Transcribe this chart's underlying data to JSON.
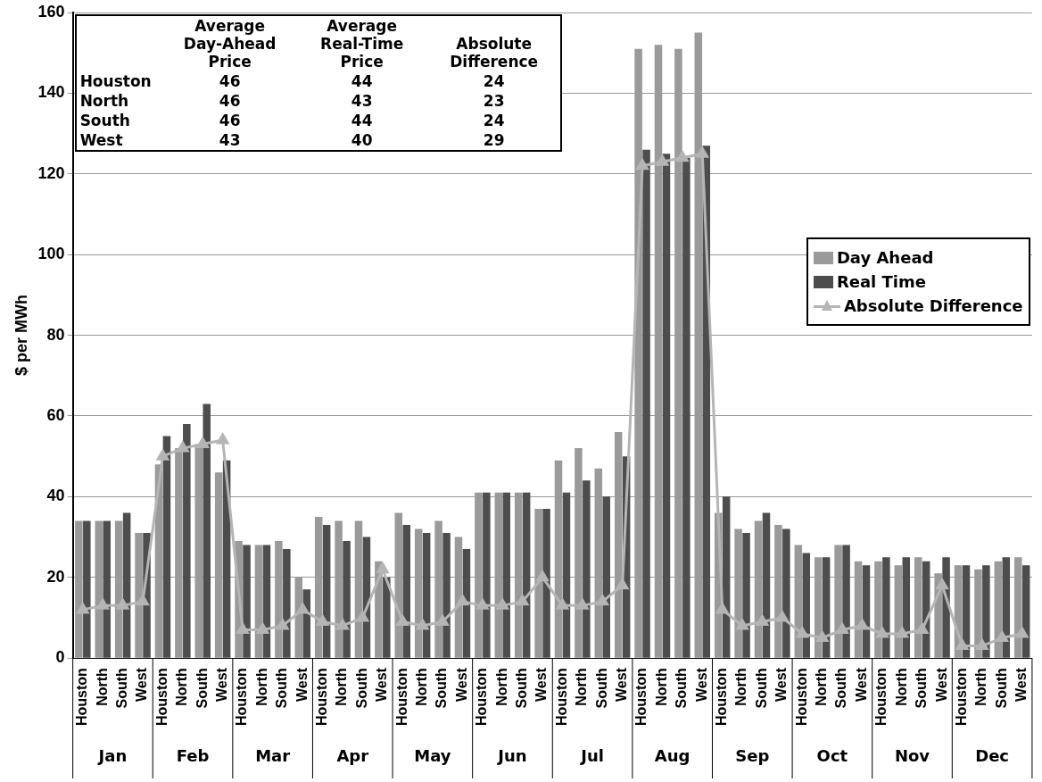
{
  "chart_data": {
    "type": "bar",
    "ylabel": "$ per MWh",
    "categories": [
      "Houston",
      "North",
      "South",
      "West",
      "Houston",
      "North",
      "South",
      "West",
      "Houston",
      "North",
      "South",
      "West",
      "Houston",
      "North",
      "South",
      "West",
      "Houston",
      "North",
      "South",
      "West",
      "Houston",
      "North",
      "South",
      "West",
      "Houston",
      "North",
      "South",
      "West",
      "Houston",
      "North",
      "South",
      "West",
      "Houston",
      "North",
      "South",
      "West",
      "Houston",
      "North",
      "South",
      "West",
      "Houston",
      "North",
      "South",
      "West",
      "Houston",
      "North",
      "South",
      "West"
    ],
    "series": [
      {
        "name": "Day Ahead",
        "color": "#9a9a9a",
        "values": [
          34,
          34,
          34,
          31,
          48,
          52,
          53,
          46,
          29,
          28,
          29,
          20,
          35,
          34,
          34,
          24,
          36,
          32,
          34,
          30,
          41,
          41,
          41,
          37,
          49,
          52,
          47,
          56,
          151,
          152,
          151,
          155,
          36,
          32,
          34,
          33,
          28,
          25,
          28,
          24,
          24,
          23,
          25,
          21,
          23,
          22,
          24,
          25
        ]
      },
      {
        "name": "Real Time",
        "color": "#4d4d4d",
        "values": [
          34,
          34,
          36,
          31,
          55,
          58,
          63,
          49,
          28,
          28,
          27,
          17,
          33,
          29,
          30,
          20,
          33,
          31,
          31,
          27,
          41,
          41,
          41,
          37,
          41,
          44,
          40,
          50,
          126,
          125,
          124,
          127,
          40,
          31,
          36,
          32,
          26,
          25,
          28,
          23,
          25,
          25,
          24,
          25,
          23,
          23,
          25,
          23
        ]
      },
      {
        "name": "Absolute Difference",
        "type": "line",
        "color": "#b5b5b5",
        "marker": "triangle",
        "values": [
          12,
          13,
          13,
          14,
          50,
          52,
          53,
          54,
          7,
          7,
          8,
          12,
          9,
          8,
          10,
          22,
          9,
          8,
          9,
          14,
          13,
          13,
          14,
          20,
          13,
          13,
          14,
          18,
          122,
          123,
          124,
          125,
          12,
          8,
          9,
          10,
          6,
          5,
          7,
          8,
          6,
          6,
          7,
          18,
          3,
          3,
          5,
          6
        ]
      }
    ],
    "ylim": [
      0,
      160
    ],
    "yticks": [
      0,
      20,
      40,
      60,
      80,
      100,
      120,
      140,
      160
    ],
    "grid": "y",
    "legend": "right",
    "annotations": [
      "Average Day-Ahead Price",
      "Average Real-Time Price",
      "Absolute Difference",
      "Houston",
      "46",
      "44",
      "24",
      "North",
      "46",
      "43",
      "23",
      "South",
      "46",
      "44",
      "24",
      "West",
      "43",
      "40",
      "29",
      "Jan",
      "Feb",
      "Mar",
      "Apr",
      "May",
      "Jun",
      "Jul",
      "Aug",
      "Sep",
      "Oct",
      "Nov",
      "Dec"
    ]
  }
}
